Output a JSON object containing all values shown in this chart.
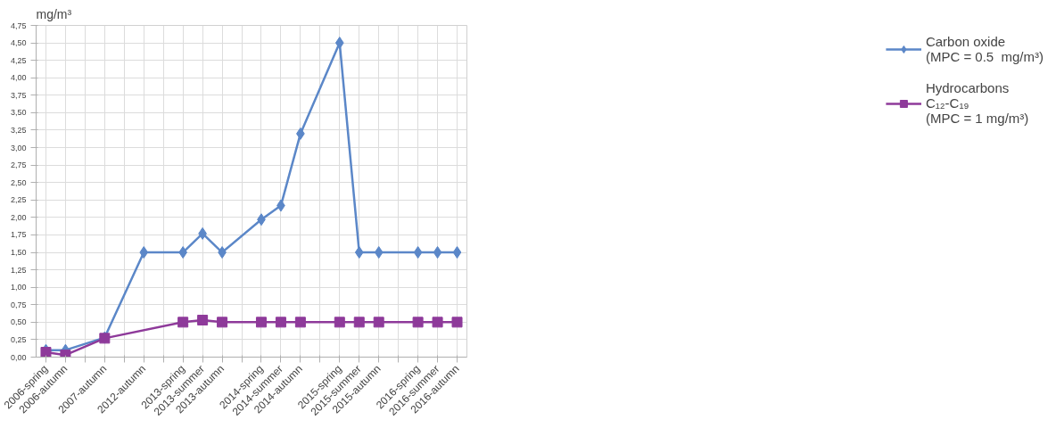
{
  "chart_data": {
    "type": "line",
    "ylabel": "mg/m³",
    "categories": [
      "2006-spring",
      "2006-autumn",
      null,
      "2007-autumn",
      null,
      "2012-autumn",
      null,
      "2013-spring",
      "2013-summer",
      "2013-autumn",
      null,
      "2014-spring",
      "2014-summer",
      "2014-autumn",
      null,
      "2015-spring",
      "2015-summer",
      "2015-autumn",
      null,
      "2016-spring",
      "2016-summer",
      "2016-autumn"
    ],
    "series": [
      {
        "name": "Carbon oxide\n(MPC = 0.5  mg/m³)",
        "color": "#5b87c8",
        "marker": "diamond",
        "values": [
          0.1,
          0.1,
          null,
          0.28,
          null,
          1.5,
          null,
          1.5,
          1.77,
          1.5,
          null,
          1.97,
          2.17,
          3.2,
          null,
          4.5,
          1.5,
          1.5,
          null,
          1.5,
          1.5,
          1.5
        ]
      },
      {
        "name": "Hydrocarbons\nC₁₂-C₁₉\n(MPC = 1 mg/m³)",
        "color": "#8e3a9a",
        "marker": "square",
        "values": [
          0.07,
          0.03,
          null,
          0.27,
          null,
          null,
          null,
          0.5,
          0.53,
          0.5,
          null,
          0.5,
          0.5,
          0.5,
          null,
          0.5,
          0.5,
          0.5,
          null,
          0.5,
          0.5,
          0.5
        ]
      }
    ],
    "ylim": [
      0,
      4.75
    ],
    "yticks": [
      {
        "value": 0,
        "label": "0,00"
      },
      {
        "value": 0.25,
        "label": "0,25"
      },
      {
        "value": 0.5,
        "label": "0,50"
      },
      {
        "value": 0.75,
        "label": "0,75"
      },
      {
        "value": 1,
        "label": "1,00"
      },
      {
        "value": 1.25,
        "label": "1,25"
      },
      {
        "value": 1.5,
        "label": "1,50"
      },
      {
        "value": 1.75,
        "label": "1,75"
      },
      {
        "value": 2,
        "label": "2,00"
      },
      {
        "value": 2.25,
        "label": "2,25"
      },
      {
        "value": 2.5,
        "label": "2,50"
      },
      {
        "value": 2.75,
        "label": "2,75"
      },
      {
        "value": 3,
        "label": "3,00"
      },
      {
        "value": 3.25,
        "label": "3,25"
      },
      {
        "value": 3.5,
        "label": "3,50"
      },
      {
        "value": 3.75,
        "label": "3,75"
      },
      {
        "value": 4,
        "label": "4,00"
      },
      {
        "value": 4.25,
        "label": "4,25"
      },
      {
        "value": 4.5,
        "label": "4,50"
      },
      {
        "value": 4.75,
        "label": "4,75"
      }
    ],
    "grid": true,
    "legend": "right",
    "line_style": "solid"
  }
}
